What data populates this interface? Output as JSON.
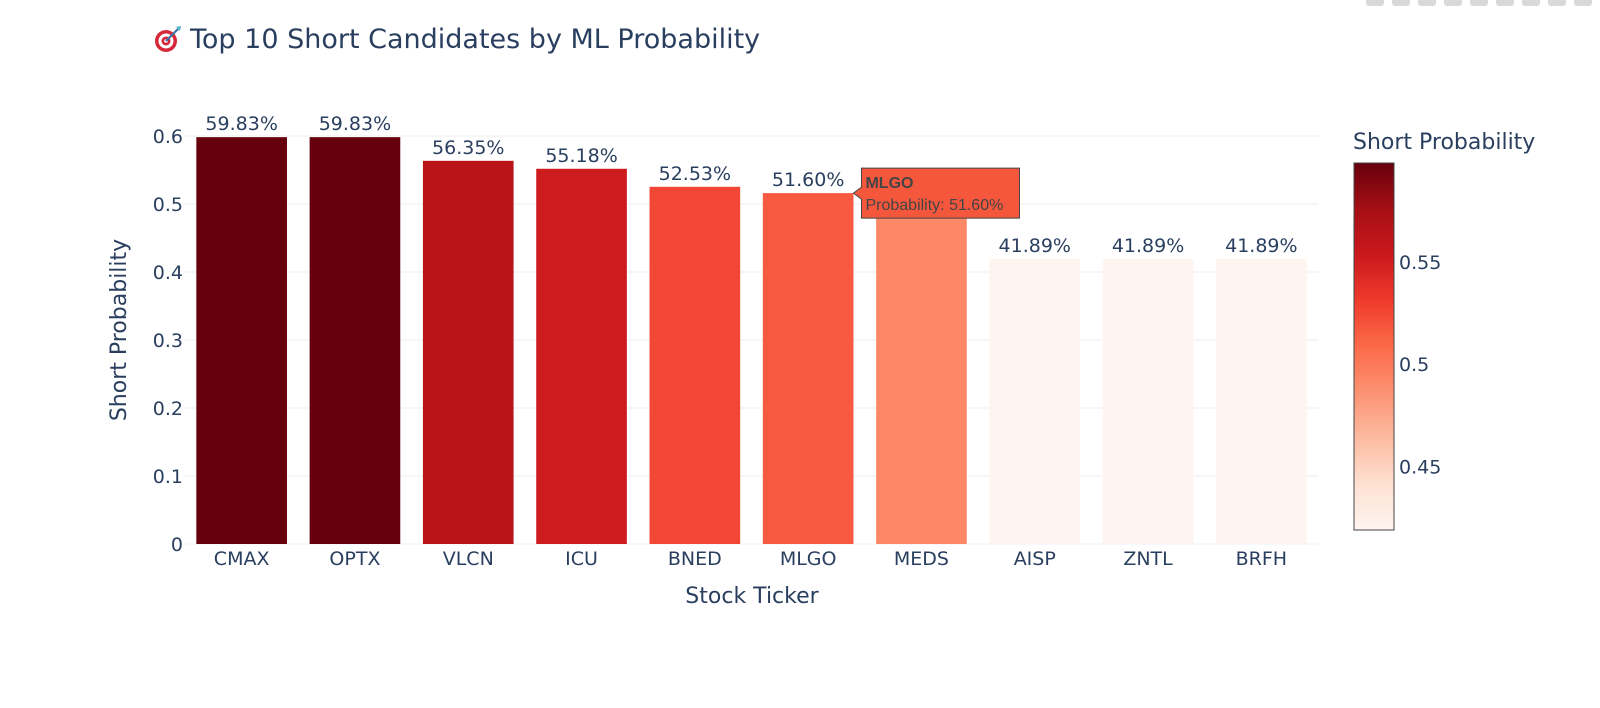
{
  "chart_data": {
    "type": "bar",
    "title_icon": "target-icon",
    "title": "Top 10 Short Candidates by ML Probability",
    "xlabel": "Stock Ticker",
    "ylabel": "Short Probability",
    "ylim": [
      0,
      0.6
    ],
    "yticks": [
      0,
      0.1,
      0.2,
      0.3,
      0.4,
      0.5,
      0.6
    ],
    "ytick_labels": [
      "0",
      "0.1",
      "0.2",
      "0.3",
      "0.4",
      "0.5",
      "0.6"
    ],
    "categories": [
      "CMAX",
      "OPTX",
      "VLCN",
      "ICU",
      "BNED",
      "MLGO",
      "MEDS",
      "AISP",
      "ZNTL",
      "BRFH"
    ],
    "values": [
      0.5983,
      0.5983,
      0.5635,
      0.5518,
      0.5253,
      0.516,
      0.492,
      0.4189,
      0.4189,
      0.4189
    ],
    "labels": [
      "59.83%",
      "59.83%",
      "56.35%",
      "55.18%",
      "52.53%",
      "51.60%",
      "",
      "41.89%",
      "41.89%",
      "41.89%"
    ],
    "grid": true,
    "colorbar": {
      "title": "Short Probability",
      "range": [
        0.4189,
        0.5983
      ],
      "ticks": [
        0.45,
        0.5,
        0.55
      ],
      "tick_labels": [
        "0.45",
        "0.5",
        "0.55"
      ],
      "colorscale": [
        "#fff5f0",
        "#fee0d2",
        "#fcbba1",
        "#fc9272",
        "#fb6a4a",
        "#ef3b2c",
        "#cb181d",
        "#a50f15",
        "#67000d"
      ]
    },
    "tooltip": {
      "category": "MLGO",
      "title": "MLGO",
      "text": "Probability: 51.60%",
      "color": "#f5573d"
    }
  }
}
